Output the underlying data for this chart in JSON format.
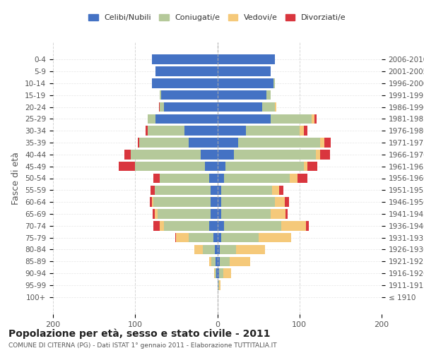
{
  "age_groups": [
    "100+",
    "95-99",
    "90-94",
    "85-89",
    "80-84",
    "75-79",
    "70-74",
    "65-69",
    "60-64",
    "55-59",
    "50-54",
    "45-49",
    "40-44",
    "35-39",
    "30-34",
    "25-29",
    "20-24",
    "15-19",
    "10-14",
    "5-9",
    "0-4"
  ],
  "birth_years": [
    "≤ 1910",
    "1911-1915",
    "1916-1920",
    "1921-1925",
    "1926-1930",
    "1931-1935",
    "1936-1940",
    "1941-1945",
    "1946-1950",
    "1951-1955",
    "1956-1960",
    "1961-1965",
    "1966-1970",
    "1971-1975",
    "1976-1980",
    "1981-1985",
    "1986-1990",
    "1991-1995",
    "1996-2000",
    "2001-2005",
    "2006-2010"
  ],
  "males": {
    "celibe": [
      0,
      0,
      1,
      2,
      3,
      5,
      10,
      8,
      8,
      8,
      10,
      15,
      20,
      35,
      40,
      75,
      65,
      68,
      80,
      75,
      80
    ],
    "coniugato": [
      0,
      0,
      2,
      5,
      15,
      30,
      55,
      65,
      70,
      68,
      60,
      85,
      85,
      60,
      45,
      10,
      5,
      2,
      0,
      0,
      0
    ],
    "vedovo": [
      0,
      0,
      1,
      3,
      10,
      15,
      5,
      3,
      2,
      0,
      0,
      0,
      0,
      0,
      0,
      0,
      0,
      0,
      0,
      0,
      0
    ],
    "divorziato": [
      0,
      0,
      0,
      0,
      0,
      1,
      8,
      3,
      2,
      5,
      8,
      20,
      8,
      2,
      2,
      0,
      1,
      0,
      0,
      0,
      0
    ]
  },
  "females": {
    "nubile": [
      0,
      1,
      2,
      3,
      3,
      5,
      8,
      5,
      5,
      5,
      8,
      10,
      20,
      25,
      35,
      65,
      55,
      60,
      68,
      65,
      70
    ],
    "coniugata": [
      0,
      1,
      5,
      12,
      20,
      45,
      70,
      60,
      65,
      62,
      80,
      95,
      100,
      100,
      65,
      50,
      15,
      5,
      2,
      0,
      0
    ],
    "vedova": [
      0,
      2,
      10,
      25,
      35,
      40,
      30,
      18,
      12,
      8,
      10,
      5,
      5,
      5,
      5,
      3,
      2,
      0,
      0,
      0,
      0
    ],
    "divorziata": [
      0,
      0,
      0,
      0,
      0,
      0,
      3,
      3,
      5,
      5,
      12,
      12,
      12,
      8,
      5,
      3,
      0,
      0,
      0,
      0,
      0
    ]
  },
  "colors": {
    "celibe": "#4472c4",
    "coniugato": "#b5c99a",
    "vedovo": "#f5c97a",
    "divorziato": "#d9363e"
  },
  "xlim": 200,
  "title": "Popolazione per età, sesso e stato civile - 2011",
  "subtitle": "COMUNE DI CITERNA (PG) - Dati ISTAT 1° gennaio 2011 - Elaborazione TUTTITALIA.IT",
  "ylabel_left": "Fasce di età",
  "legend_labels": [
    "Celibi/Nubili",
    "Coniugati/e",
    "Vedovi/e",
    "Divorziati/e"
  ],
  "background_color": "#ffffff",
  "grid_color": "#cccccc"
}
